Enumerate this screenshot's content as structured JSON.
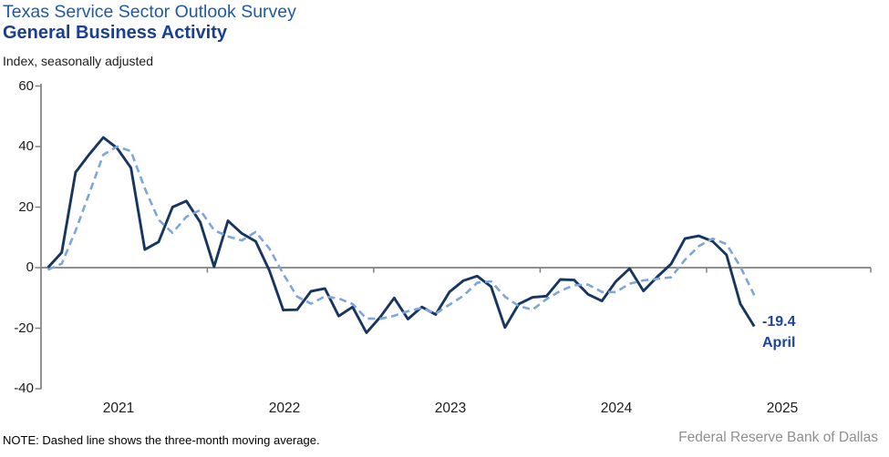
{
  "chart_data": {
    "type": "line",
    "title": "Texas Service Sector Outlook Survey",
    "subtitle": "General Business Activity",
    "ylabel_note": "Index, seasonally adjusted",
    "ylim": [
      -40,
      60
    ],
    "yticks": [
      60,
      40,
      20,
      0,
      -20,
      -40
    ],
    "x_year_labels": [
      "2021",
      "2022",
      "2023",
      "2024",
      "2025"
    ],
    "grid": "zero-line-only",
    "legend": "none",
    "months_start": "2021-01",
    "months_end": "2025-04",
    "series": [
      {
        "name": "General Business Activity index",
        "style": "solid",
        "color": "#17365f",
        "values": [
          0,
          5,
          31.5,
          37.5,
          43,
          39.5,
          33,
          6,
          8.5,
          20,
          22,
          15,
          0.3,
          15.5,
          11.3,
          8.7,
          -1,
          -14,
          -13.9,
          -7.8,
          -6.9,
          -16,
          -13,
          -21.5,
          -16.3,
          -10,
          -17,
          -13,
          -15.5,
          -8,
          -4.3,
          -2.8,
          -6.3,
          -19.8,
          -12,
          -9.8,
          -9.4,
          -3.9,
          -4.1,
          -8.8,
          -11,
          -4.6,
          -0.3,
          -7.7,
          -3,
          1.2,
          9.6,
          10.5,
          8.7,
          4.2,
          -12,
          -19.4
        ]
      },
      {
        "name": "Three-month moving average",
        "style": "dashed",
        "color": "#7ea6d9",
        "values": [
          -0.7,
          1.3,
          12.2,
          24.7,
          37.3,
          40.0,
          38.5,
          26.2,
          15.8,
          11.5,
          16.8,
          19.0,
          12.4,
          10.3,
          9.0,
          11.8,
          6.3,
          -2.1,
          -9.6,
          -11.9,
          -9.5,
          -10.2,
          -12.0,
          -16.8,
          -16.9,
          -15.9,
          -14.4,
          -13.3,
          -15.2,
          -12.2,
          -9.3,
          -5.0,
          -4.5,
          -9.6,
          -12.7,
          -13.9,
          -10.4,
          -7.7,
          -5.8,
          -5.6,
          -8.0,
          -8.1,
          -5.3,
          -4.2,
          -3.7,
          -3.2,
          2.6,
          7.1,
          9.6,
          7.8,
          0.3,
          -9.1
        ]
      }
    ],
    "annotation": {
      "value": "-19.4",
      "label": "April"
    },
    "note": "NOTE: Dashed line shows the three-month moving average.",
    "source": "Federal Reserve Bank of Dallas",
    "axis_color": "#808080"
  }
}
